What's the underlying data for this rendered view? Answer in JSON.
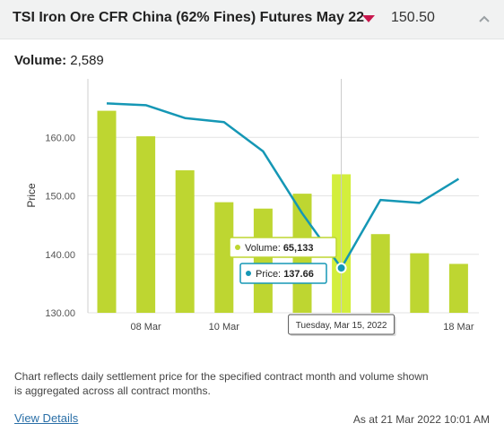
{
  "header": {
    "title": "TSI Iron Ore CFR China (62% Fines) Futures May 22",
    "price": "150.50",
    "direction": "down",
    "down_color": "#c8174d"
  },
  "volume": {
    "label": "Volume:",
    "value": "2,589"
  },
  "chart_data": {
    "type": "bar+line",
    "ylabel": "Price",
    "y_ticks": [
      "130.00",
      "140.00",
      "150.00",
      "160.00"
    ],
    "ylim": [
      130,
      170
    ],
    "x_tick_labels": [
      {
        "index": 1,
        "label": "08 Mar"
      },
      {
        "index": 3,
        "label": "10 Mar"
      },
      {
        "index": 9,
        "label": "18 Mar"
      }
    ],
    "price": [
      165.8,
      165.5,
      163.3,
      162.6,
      157.6,
      147.0,
      137.66,
      149.3,
      148.8,
      152.9
    ],
    "volume": [
      95000,
      83000,
      67000,
      52000,
      49000,
      56000,
      65133,
      37000,
      28000,
      23000
    ],
    "volume_max": 110000,
    "bar_color": "#bed631",
    "highlight_bar_color": "#d3ee3c",
    "line_color": "#1597b5",
    "grid": true,
    "tooltip": {
      "index": 6,
      "volume_label": "Volume:",
      "volume_value": "65,133",
      "price_label": "Price:",
      "price_value": "137.66",
      "date": "Tuesday, Mar 15, 2022"
    }
  },
  "footnote": "Chart reflects daily settlement price for the specified contract month and volume shown is aggregated across all contract months.",
  "footer": {
    "view_details": "View Details",
    "as_at": "As at 21 Mar 2022 10:01 AM"
  }
}
